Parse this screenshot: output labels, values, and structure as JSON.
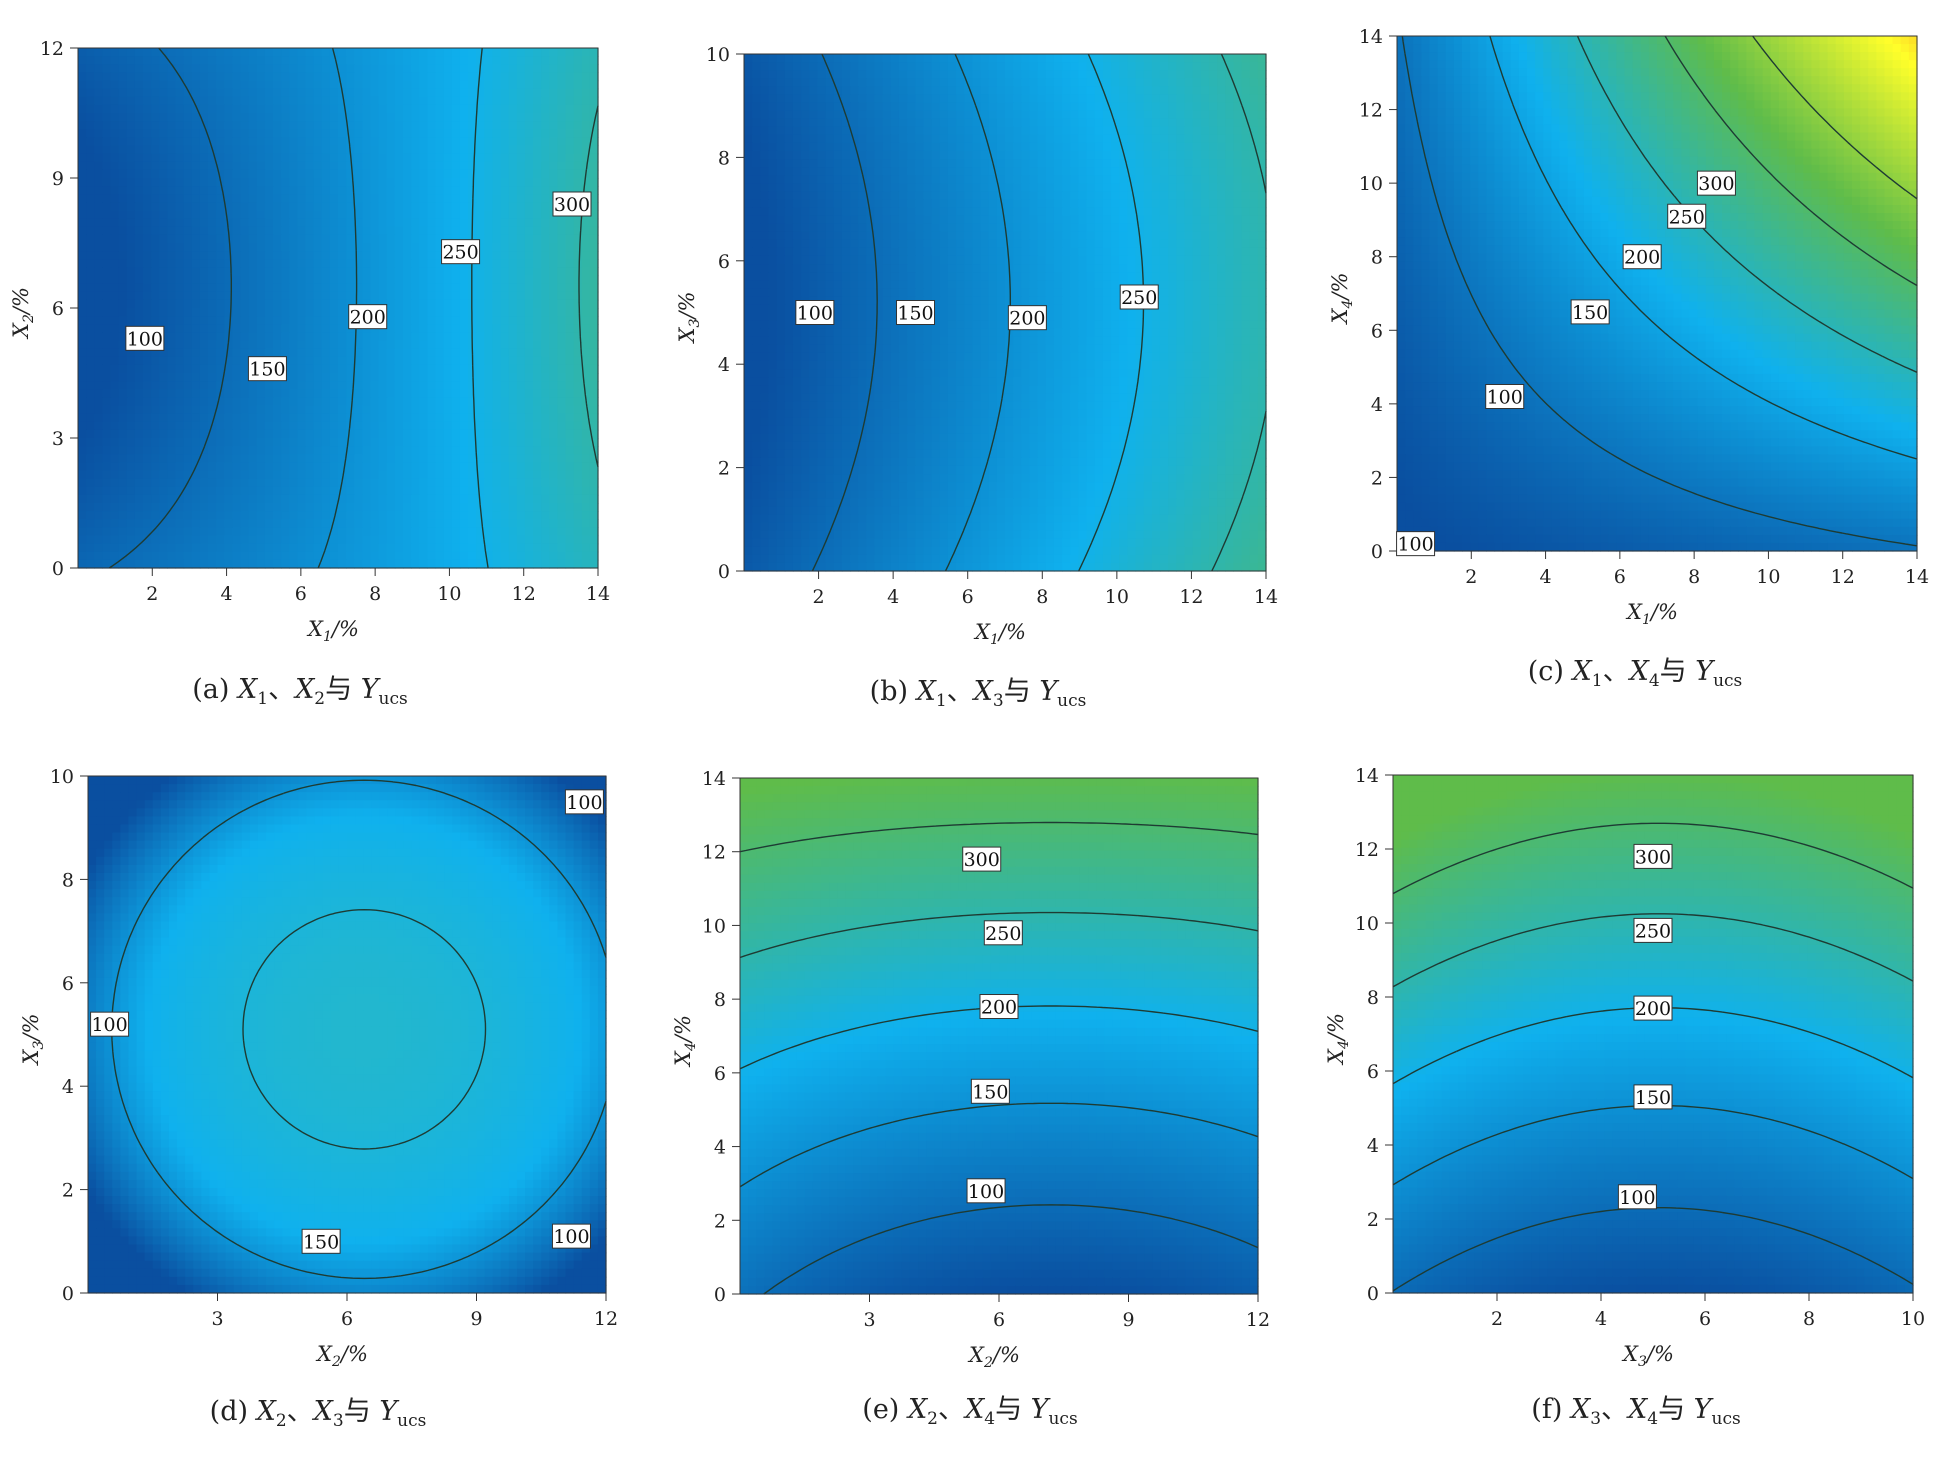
{
  "chart_data": [
    {
      "type": "heatmap",
      "subtype": "contour",
      "caption": {
        "label": "(a)",
        "x": "X",
        "xsub": "1",
        "sep": "、",
        "y": "X",
        "ysub": "2",
        "conj": "与",
        "resp": "Y",
        "respsub": "ucs"
      },
      "xlabel": {
        "var": "X",
        "sub": "1",
        "unit": "/%"
      },
      "ylabel": {
        "var": "X",
        "sub": "2",
        "unit": "/%"
      },
      "xlim": [
        0,
        14
      ],
      "ylim": [
        0,
        12
      ],
      "xticks": [
        2,
        4,
        6,
        8,
        10,
        12,
        14
      ],
      "yticks": [
        0,
        3,
        6,
        9,
        12
      ],
      "contour_levels": [
        100,
        150,
        200,
        250,
        300
      ],
      "contour_labels": [
        {
          "text": "100",
          "x": 1.8,
          "y": 5.3
        },
        {
          "text": "150",
          "x": 5.1,
          "y": 4.6
        },
        {
          "text": "200",
          "x": 7.8,
          "y": 5.8
        },
        {
          "text": "250",
          "x": 10.3,
          "y": 7.3
        },
        {
          "text": "300",
          "x": 13.3,
          "y": 8.4
        }
      ],
      "color_scale": [
        "#0a4fa0",
        "#0fb1ee",
        "#5fbc4a"
      ],
      "color_range": [
        60,
        330
      ]
    },
    {
      "type": "heatmap",
      "subtype": "contour",
      "caption": {
        "label": "(b)",
        "x": "X",
        "xsub": "1",
        "sep": "、",
        "y": "X",
        "ysub": "3",
        "conj": "与",
        "resp": "Y",
        "respsub": "ucs"
      },
      "xlabel": {
        "var": "X",
        "sub": "1",
        "unit": "/%"
      },
      "ylabel": {
        "var": "X",
        "sub": "3",
        "unit": "/%"
      },
      "xlim": [
        0,
        14
      ],
      "ylim": [
        0,
        10
      ],
      "xticks": [
        2,
        4,
        6,
        8,
        10,
        12,
        14
      ],
      "yticks": [
        0,
        2,
        4,
        6,
        8,
        10
      ],
      "contour_levels": [
        100,
        150,
        200,
        250
      ],
      "contour_labels": [
        {
          "text": "100",
          "x": 1.9,
          "y": 5.0
        },
        {
          "text": "150",
          "x": 4.6,
          "y": 5.0
        },
        {
          "text": "200",
          "x": 7.6,
          "y": 4.9
        },
        {
          "text": "250",
          "x": 10.6,
          "y": 5.3
        }
      ],
      "color_scale": [
        "#0a4fa0",
        "#0fb1ee",
        "#5fbc4a"
      ],
      "color_range": [
        60,
        330
      ]
    },
    {
      "type": "heatmap",
      "subtype": "contour",
      "caption": {
        "label": "(c)",
        "x": "X",
        "xsub": "1",
        "sep": "、",
        "y": "X",
        "ysub": "4",
        "conj": "与",
        "resp": "Y",
        "respsub": "ucs"
      },
      "xlabel": {
        "var": "X",
        "sub": "1",
        "unit": "/%"
      },
      "ylabel": {
        "var": "X",
        "sub": "4",
        "unit": "/%"
      },
      "xlim": [
        0,
        14
      ],
      "ylim": [
        0,
        14
      ],
      "xticks": [
        2,
        4,
        6,
        8,
        10,
        12,
        14
      ],
      "yticks": [
        0,
        2,
        4,
        6,
        8,
        10,
        12,
        14
      ],
      "contour_levels": [
        100,
        150,
        200,
        250,
        300
      ],
      "contour_labels": [
        {
          "text": "100",
          "x": 2.9,
          "y": 4.2
        },
        {
          "text": "150",
          "x": 5.2,
          "y": 6.5
        },
        {
          "text": "200",
          "x": 6.6,
          "y": 8.0
        },
        {
          "text": "250",
          "x": 7.8,
          "y": 9.1
        },
        {
          "text": "300",
          "x": 8.6,
          "y": 10.0
        },
        {
          "text": "100",
          "x": 0.5,
          "y": 0.2
        }
      ],
      "color_scale": [
        "#0a4fa0",
        "#0fb1ee",
        "#5fbc4a",
        "#ffff2a",
        "#f03010"
      ],
      "color_range": [
        60,
        480
      ]
    },
    {
      "type": "heatmap",
      "subtype": "contour",
      "caption": {
        "label": "(d)",
        "x": "X",
        "xsub": "2",
        "sep": "、",
        "y": "X",
        "ysub": "3",
        "conj": "与",
        "resp": "Y",
        "respsub": "ucs"
      },
      "xlabel": {
        "var": "X",
        "sub": "2",
        "unit": "/%"
      },
      "ylabel": {
        "var": "X",
        "sub": "3",
        "unit": "/%"
      },
      "xlim": [
        0,
        12
      ],
      "ylim": [
        0,
        10
      ],
      "xticks": [
        3,
        6,
        9,
        12
      ],
      "yticks": [
        0,
        2,
        4,
        6,
        8,
        10
      ],
      "contour_levels": [
        100,
        150
      ],
      "contour_labels": [
        {
          "text": "100",
          "x": 0.5,
          "y": 5.2
        },
        {
          "text": "150",
          "x": 5.4,
          "y": 1.0
        },
        {
          "text": "100",
          "x": 11.5,
          "y": 9.5
        },
        {
          "text": "100",
          "x": 11.2,
          "y": 1.1
        }
      ],
      "color_scale": [
        "#0a4fa0",
        "#0fb1ee",
        "#26b8c8"
      ],
      "color_range": [
        60,
        175
      ]
    },
    {
      "type": "heatmap",
      "subtype": "contour",
      "caption": {
        "label": "(e)",
        "x": "X",
        "xsub": "2",
        "sep": "、",
        "y": "X",
        "ysub": "4",
        "conj": "与",
        "resp": "Y",
        "respsub": "ucs"
      },
      "xlabel": {
        "var": "X",
        "sub": "2",
        "unit": "/%"
      },
      "ylabel": {
        "var": "X",
        "sub": "4",
        "unit": "/%"
      },
      "xlim": [
        0,
        12
      ],
      "ylim": [
        0,
        14
      ],
      "xticks": [
        3,
        6,
        9,
        12
      ],
      "yticks": [
        0,
        2,
        4,
        6,
        8,
        10,
        12,
        14
      ],
      "contour_levels": [
        100,
        150,
        200,
        250,
        300
      ],
      "contour_labels": [
        {
          "text": "100",
          "x": 5.7,
          "y": 2.8
        },
        {
          "text": "150",
          "x": 5.8,
          "y": 5.5
        },
        {
          "text": "200",
          "x": 6.0,
          "y": 7.8
        },
        {
          "text": "250",
          "x": 6.1,
          "y": 9.8
        },
        {
          "text": "300",
          "x": 5.6,
          "y": 11.8
        }
      ],
      "color_scale": [
        "#0a4fa0",
        "#0fb1ee",
        "#5fbc4a"
      ],
      "color_range": [
        60,
        330
      ]
    },
    {
      "type": "heatmap",
      "subtype": "contour",
      "caption": {
        "label": "(f)",
        "x": "X",
        "xsub": "3",
        "sep": "、",
        "y": "X",
        "ysub": "4",
        "conj": "与",
        "resp": "Y",
        "respsub": "ucs"
      },
      "xlabel": {
        "var": "X",
        "sub": "3",
        "unit": "/%"
      },
      "ylabel": {
        "var": "X",
        "sub": "4",
        "unit": "/%"
      },
      "xlim": [
        0,
        10
      ],
      "ylim": [
        0,
        14
      ],
      "xticks": [
        2,
        4,
        6,
        8,
        10
      ],
      "yticks": [
        0,
        2,
        4,
        6,
        8,
        10,
        12,
        14
      ],
      "contour_levels": [
        100,
        150,
        200,
        250,
        300
      ],
      "contour_labels": [
        {
          "text": "100",
          "x": 4.7,
          "y": 2.6
        },
        {
          "text": "150",
          "x": 5.0,
          "y": 5.3
        },
        {
          "text": "200",
          "x": 5.0,
          "y": 7.7
        },
        {
          "text": "250",
          "x": 5.0,
          "y": 9.8
        },
        {
          "text": "300",
          "x": 5.0,
          "y": 11.8
        }
      ],
      "color_scale": [
        "#0a4fa0",
        "#0fb1ee",
        "#5fbc4a"
      ],
      "color_range": [
        60,
        330
      ]
    }
  ]
}
